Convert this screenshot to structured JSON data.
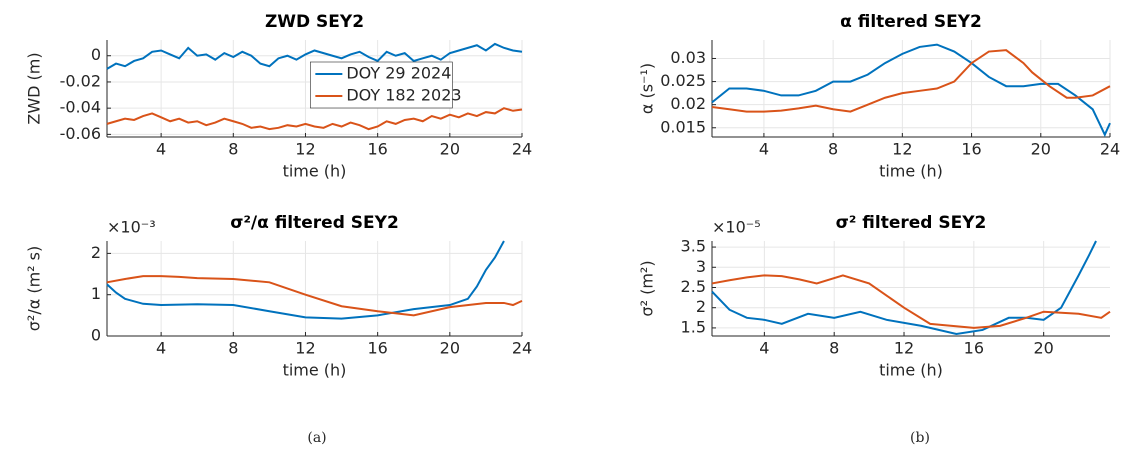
{
  "chart_data": [
    {
      "type": "line",
      "title": "ZWD SEY2",
      "xlabel": "time (h)",
      "ylabel": "ZWD (m)",
      "x": [
        1,
        1.5,
        2,
        2.5,
        3,
        3.5,
        4,
        4.5,
        5,
        5.5,
        6,
        6.5,
        7,
        7.5,
        8,
        8.5,
        9,
        9.5,
        10,
        10.5,
        11,
        11.5,
        12,
        12.5,
        13,
        13.5,
        14,
        14.5,
        15,
        15.5,
        16,
        16.5,
        17,
        17.5,
        18,
        18.5,
        19,
        19.5,
        20,
        20.5,
        21,
        21.5,
        22,
        22.5,
        23,
        23.5,
        24
      ],
      "series": [
        {
          "name": "DOY 29 2024",
          "color": "#0072bd",
          "values": [
            -0.01,
            -0.006,
            -0.008,
            -0.004,
            -0.002,
            0.003,
            0.004,
            0.001,
            -0.002,
            0.006,
            0,
            0.001,
            -0.003,
            0.002,
            -0.001,
            0.003,
            0,
            -0.006,
            -0.008,
            -0.002,
            0,
            -0.003,
            0.001,
            0.004,
            0.002,
            0,
            -0.002,
            0.001,
            0.003,
            -0.001,
            -0.004,
            0.003,
            0,
            0.002,
            -0.004,
            -0.002,
            0,
            -0.003,
            0.002,
            0.004,
            0.006,
            0.008,
            0.004,
            0.009,
            0.006,
            0.004,
            0.003
          ]
        },
        {
          "name": "DOY 182 2023",
          "color": "#d95319",
          "values": [
            -0.052,
            -0.05,
            -0.048,
            -0.049,
            -0.046,
            -0.044,
            -0.047,
            -0.05,
            -0.048,
            -0.051,
            -0.05,
            -0.053,
            -0.051,
            -0.048,
            -0.05,
            -0.052,
            -0.055,
            -0.054,
            -0.056,
            -0.055,
            -0.053,
            -0.054,
            -0.052,
            -0.054,
            -0.055,
            -0.052,
            -0.054,
            -0.051,
            -0.053,
            -0.056,
            -0.054,
            -0.05,
            -0.052,
            -0.049,
            -0.048,
            -0.05,
            -0.046,
            -0.048,
            -0.045,
            -0.047,
            -0.044,
            -0.046,
            -0.043,
            -0.044,
            -0.04,
            -0.042,
            -0.041
          ]
        }
      ],
      "xlim": [
        1,
        24
      ],
      "xticks": [
        4,
        8,
        12,
        16,
        20,
        24
      ],
      "ylim": [
        -0.062,
        0.012
      ],
      "yticks": [
        -0.06,
        -0.04,
        -0.02,
        0
      ],
      "grid": true,
      "legend": "east"
    },
    {
      "type": "line",
      "title": "σ²/α filtered SEY2",
      "xlabel": "time (h)",
      "ylabel": "σ²/α (m² s)",
      "exponent_label": "×10⁻³",
      "series": [
        {
          "color": "#0072bd",
          "x": [
            1,
            1.5,
            2,
            3,
            4,
            6,
            8,
            10,
            12,
            14,
            16,
            18,
            20,
            21,
            21.5,
            22,
            22.5,
            23
          ],
          "values": [
            1.25,
            1.05,
            0.9,
            0.78,
            0.75,
            0.77,
            0.75,
            0.6,
            0.45,
            0.42,
            0.5,
            0.65,
            0.75,
            0.9,
            1.2,
            1.6,
            1.9,
            2.3
          ]
        },
        {
          "color": "#d95319",
          "x": [
            1,
            2,
            3,
            4,
            5,
            6,
            8,
            10,
            12,
            14,
            16,
            18,
            20,
            22,
            23,
            23.5,
            24
          ],
          "values": [
            1.3,
            1.38,
            1.45,
            1.45,
            1.43,
            1.4,
            1.38,
            1.3,
            1.0,
            0.72,
            0.6,
            0.5,
            0.7,
            0.8,
            0.8,
            0.75,
            0.85
          ]
        }
      ],
      "xlim": [
        1,
        24
      ],
      "xticks": [
        4,
        8,
        12,
        16,
        20,
        24
      ],
      "ylim": [
        0,
        2.3
      ],
      "yticks": [
        0,
        1,
        2
      ],
      "grid": true
    },
    {
      "type": "line",
      "title": "α filtered SEY2",
      "xlabel": "time (h)",
      "ylabel": "α (s⁻¹)",
      "series": [
        {
          "color": "#0072bd",
          "x": [
            1,
            2,
            3,
            4,
            5,
            6,
            7,
            8,
            9,
            10,
            11,
            12,
            13,
            14,
            15,
            16,
            17,
            18,
            19,
            20,
            21,
            22,
            23,
            23.7,
            24
          ],
          "values": [
            0.0205,
            0.0235,
            0.0235,
            0.023,
            0.022,
            0.022,
            0.023,
            0.025,
            0.025,
            0.0265,
            0.029,
            0.031,
            0.0325,
            0.033,
            0.0315,
            0.029,
            0.026,
            0.024,
            0.024,
            0.0245,
            0.0245,
            0.022,
            0.019,
            0.0135,
            0.016
          ]
        },
        {
          "color": "#d95319",
          "x": [
            1,
            2,
            3,
            4,
            5,
            6,
            7,
            8,
            9,
            10,
            11,
            12,
            13,
            14,
            15,
            16,
            17,
            18,
            19,
            19.5,
            20.5,
            21.5,
            22,
            23,
            24
          ],
          "values": [
            0.0195,
            0.019,
            0.0185,
            0.0185,
            0.0187,
            0.0192,
            0.0198,
            0.019,
            0.0185,
            0.02,
            0.0215,
            0.0225,
            0.023,
            0.0235,
            0.025,
            0.029,
            0.0315,
            0.0318,
            0.029,
            0.027,
            0.024,
            0.0215,
            0.0215,
            0.022,
            0.024
          ]
        }
      ],
      "xlim": [
        1,
        24
      ],
      "xticks": [
        4,
        8,
        12,
        16,
        20,
        24
      ],
      "ylim": [
        0.013,
        0.034
      ],
      "yticks": [
        0.015,
        0.02,
        0.025,
        0.03
      ],
      "grid": true
    },
    {
      "type": "line",
      "title": "σ² filtered SEY2",
      "xlabel": "time (h)",
      "ylabel": "σ² (m²)",
      "exponent_label": "×10⁻⁵",
      "series": [
        {
          "color": "#0072bd",
          "x": [
            1,
            2,
            3,
            4,
            5,
            6.5,
            8,
            9.5,
            11,
            13,
            15,
            16.5,
            18,
            19,
            20,
            21,
            22,
            22.6,
            23
          ],
          "values": [
            2.4,
            1.95,
            1.75,
            1.7,
            1.6,
            1.85,
            1.75,
            1.9,
            1.7,
            1.55,
            1.35,
            1.45,
            1.75,
            1.75,
            1.7,
            2.0,
            2.8,
            3.3,
            3.65
          ]
        },
        {
          "color": "#d95319",
          "x": [
            1,
            2,
            3,
            4,
            5,
            6,
            7,
            8.5,
            10,
            11,
            12,
            13.5,
            16,
            17.5,
            19,
            20,
            22,
            23.3,
            23.8
          ],
          "values": [
            2.6,
            2.68,
            2.75,
            2.8,
            2.78,
            2.7,
            2.6,
            2.8,
            2.6,
            2.3,
            2.0,
            1.6,
            1.5,
            1.55,
            1.75,
            1.9,
            1.85,
            1.75,
            1.9
          ]
        }
      ],
      "xlim": [
        1,
        23.8
      ],
      "xticks": [
        4,
        8,
        12,
        16,
        20
      ],
      "ylim": [
        1.3,
        3.65
      ],
      "yticks": [
        1.5,
        2,
        2.5,
        3,
        3.5
      ],
      "grid": true
    }
  ],
  "captions": [
    "(a)",
    "(b)"
  ]
}
